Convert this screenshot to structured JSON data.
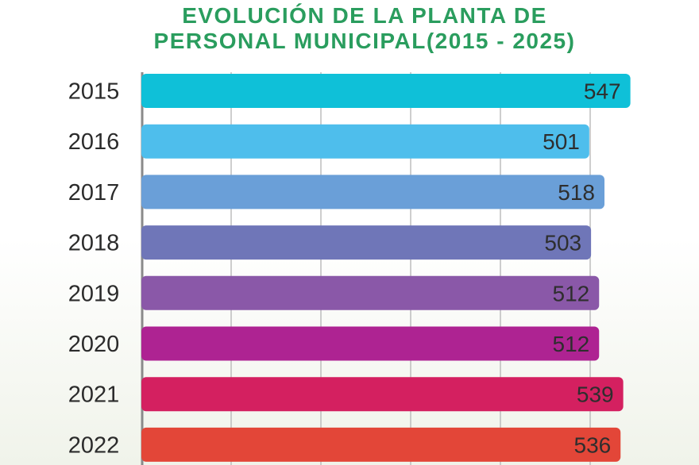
{
  "chart_data": {
    "type": "bar",
    "orientation": "horizontal",
    "title_lines": [
      "EVOLUCIÓN DE LA PLANTA DE",
      "PERSONAL MUNICIPAL(2015 - 2025)"
    ],
    "categories": [
      "2015",
      "2016",
      "2017",
      "2018",
      "2019",
      "2020",
      "2021",
      "2022"
    ],
    "values": [
      547,
      501,
      518,
      503,
      512,
      512,
      539,
      536
    ],
    "value_labels": [
      "547",
      "501",
      "518",
      "503",
      "512",
      "512",
      "539",
      "536"
    ],
    "bar_colors": [
      "#0fc0d8",
      "#4ebeec",
      "#6a9fd8",
      "#6f76b8",
      "#8a58a8",
      "#ae2392",
      "#d42060",
      "#e34638"
    ],
    "xlim": [
      0,
      550
    ],
    "grid": true,
    "axis_color": "#8a8a8a",
    "grid_color": "#bdbdbd",
    "title_color": "#2a9d5e"
  }
}
